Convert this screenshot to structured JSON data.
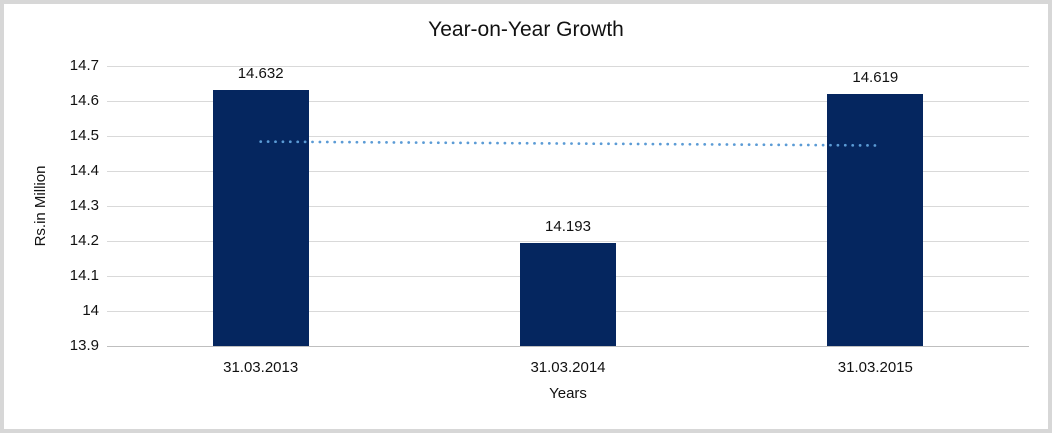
{
  "figure": {
    "background_color": "#FFFFFF",
    "border_color": "#D7D7D7"
  },
  "chart_data": {
    "type": "bar",
    "title": "Year-on-Year Growth",
    "categories": [
      "31.03.2013",
      "31.03.2014",
      "31.03.2015"
    ],
    "values": [
      14.632,
      14.193,
      14.619
    ],
    "data_labels": [
      "14.632",
      "14.193",
      "14.619"
    ],
    "xlabel": "Years",
    "ylabel": "Rs.in Million",
    "ylim": [
      13.9,
      14.7
    ],
    "ytick_labels": [
      "14.7",
      "14.6",
      "14.5",
      "14.4",
      "14.3",
      "14.2",
      "14.1",
      "14",
      "13.9"
    ],
    "ytick_values": [
      14.7,
      14.6,
      14.5,
      14.4,
      14.3,
      14.2,
      14.1,
      14.0,
      13.9
    ],
    "grid": "horizontal",
    "legend": "none",
    "bar_color": "#05265F",
    "gridline_color": "#D9D9D9",
    "axis_line_color": "#BFBFBF",
    "text_color": "#111111",
    "trendline": {
      "type": "linear",
      "style": "dotted",
      "color": "#5B9BD5",
      "start_value": 14.484,
      "end_value": 14.473
    }
  }
}
